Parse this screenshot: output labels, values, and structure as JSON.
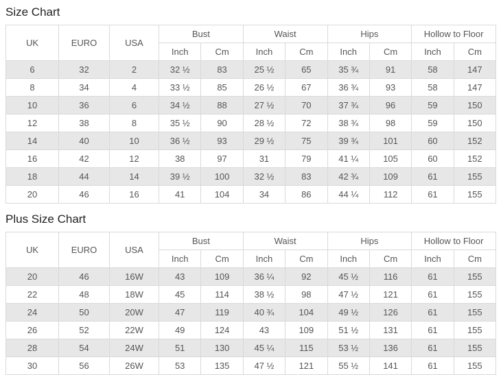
{
  "colors": {
    "stripe_row_bg": "#e7e7e7",
    "table_border": "#d9d9d9",
    "cell_text": "#555555",
    "title_text": "#1f1f1f",
    "page_bg": "#ffffff"
  },
  "tables": [
    {
      "title": "Size Chart",
      "base_headers": [
        "UK",
        "EURO",
        "USA"
      ],
      "group_headers": [
        "Bust",
        "Waist",
        "Hips",
        "Hollow to Floor"
      ],
      "sub_headers": [
        "Inch",
        "Cm",
        "Inch",
        "Cm",
        "Inch",
        "Cm",
        "Inch",
        "Cm"
      ],
      "rows": [
        [
          "6",
          "32",
          "2",
          "32 ½",
          "83",
          "25 ½",
          "65",
          "35 ¾",
          "91",
          "58",
          "147"
        ],
        [
          "8",
          "34",
          "4",
          "33 ½",
          "85",
          "26 ½",
          "67",
          "36 ¾",
          "93",
          "58",
          "147"
        ],
        [
          "10",
          "36",
          "6",
          "34 ½",
          "88",
          "27 ½",
          "70",
          "37 ¾",
          "96",
          "59",
          "150"
        ],
        [
          "12",
          "38",
          "8",
          "35 ½",
          "90",
          "28 ½",
          "72",
          "38 ¾",
          "98",
          "59",
          "150"
        ],
        [
          "14",
          "40",
          "10",
          "36 ½",
          "93",
          "29 ½",
          "75",
          "39 ¾",
          "101",
          "60",
          "152"
        ],
        [
          "16",
          "42",
          "12",
          "38",
          "97",
          "31",
          "79",
          "41 ¼",
          "105",
          "60",
          "152"
        ],
        [
          "18",
          "44",
          "14",
          "39 ½",
          "100",
          "32 ½",
          "83",
          "42 ¾",
          "109",
          "61",
          "155"
        ],
        [
          "20",
          "46",
          "16",
          "41",
          "104",
          "34",
          "86",
          "44 ¼",
          "112",
          "61",
          "155"
        ]
      ]
    },
    {
      "title": "Plus Size Chart",
      "base_headers": [
        "UK",
        "EURO",
        "USA"
      ],
      "group_headers": [
        "Bust",
        "Waist",
        "Hips",
        "Hollow to Floor"
      ],
      "sub_headers": [
        "Inch",
        "Cm",
        "Inch",
        "Cm",
        "Inch",
        "Cm",
        "Inch",
        "Cm"
      ],
      "rows": [
        [
          "20",
          "46",
          "16W",
          "43",
          "109",
          "36 ¼",
          "92",
          "45 ½",
          "116",
          "61",
          "155"
        ],
        [
          "22",
          "48",
          "18W",
          "45",
          "114",
          "38 ½",
          "98",
          "47 ½",
          "121",
          "61",
          "155"
        ],
        [
          "24",
          "50",
          "20W",
          "47",
          "119",
          "40 ¾",
          "104",
          "49 ½",
          "126",
          "61",
          "155"
        ],
        [
          "26",
          "52",
          "22W",
          "49",
          "124",
          "43",
          "109",
          "51 ½",
          "131",
          "61",
          "155"
        ],
        [
          "28",
          "54",
          "24W",
          "51",
          "130",
          "45 ¼",
          "115",
          "53 ½",
          "136",
          "61",
          "155"
        ],
        [
          "30",
          "56",
          "26W",
          "53",
          "135",
          "47 ½",
          "121",
          "55 ½",
          "141",
          "61",
          "155"
        ]
      ]
    }
  ]
}
